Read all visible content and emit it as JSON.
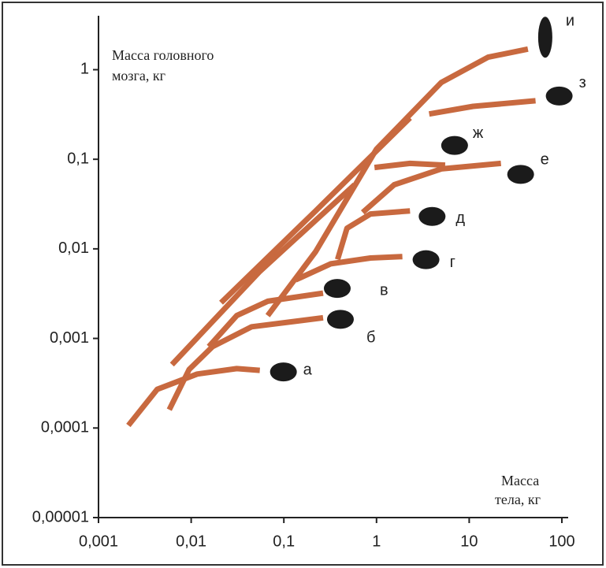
{
  "chart_data": {
    "type": "line",
    "xlabel": [
      "Масса",
      "тела, кг"
    ],
    "ylabel": [
      "Масса головного",
      "мозга, кг"
    ],
    "xscale": "log",
    "yscale": "log",
    "xlim": [
      0.001,
      100
    ],
    "ylim": [
      1e-05,
      4
    ],
    "xticks": [
      {
        "value": 0.001,
        "label": "0,001"
      },
      {
        "value": 0.01,
        "label": "0,01"
      },
      {
        "value": 0.1,
        "label": "0,1"
      },
      1,
      10,
      100
    ],
    "yticks": [
      {
        "value": 1e-05,
        "label": "0,00001"
      },
      {
        "value": 0.0001,
        "label": "0,0001"
      },
      {
        "value": 0.001,
        "label": "0,001"
      },
      {
        "value": 0.01,
        "label": "0,01"
      },
      {
        "value": 0.1,
        "label": "0,1"
      },
      1
    ],
    "color": "#c8693f",
    "series": [
      {
        "name": "а",
        "x": [
          0.0021,
          0.0043,
          0.0116,
          0.031,
          0.055
        ],
        "values": [
          0.000107,
          0.00027,
          0.0004,
          0.00046,
          0.00044
        ]
      },
      {
        "name": "б",
        "x": [
          0.0058,
          0.0095,
          0.017,
          0.045,
          0.265
        ],
        "values": [
          0.00016,
          0.00045,
          0.00081,
          0.00135,
          0.0017
        ]
      },
      {
        "name": "в",
        "x": [
          0.0155,
          0.031,
          0.067,
          0.265
        ],
        "values": [
          0.00081,
          0.0018,
          0.0026,
          0.0032
        ]
      },
      {
        "name": "г",
        "x": [
          0.134,
          0.32,
          0.86,
          1.9
        ],
        "values": [
          0.0045,
          0.0068,
          0.0079,
          0.0082
        ]
      },
      {
        "name": "д",
        "x": [
          0.38,
          0.48,
          0.86,
          2.3
        ],
        "values": [
          0.0076,
          0.017,
          0.0245,
          0.0265
        ]
      },
      {
        "name": "е",
        "x": [
          0.71,
          1.55,
          5.0,
          22
        ],
        "values": [
          0.0255,
          0.052,
          0.078,
          0.09
        ]
      },
      {
        "name": "ж",
        "x": [
          0.95,
          2.3,
          5.5
        ],
        "values": [
          0.081,
          0.09,
          0.086
        ]
      },
      {
        "name": "з",
        "x": [
          3.7,
          11,
          52
        ],
        "values": [
          0.32,
          0.39,
          0.45
        ]
      },
      {
        "name": "и",
        "x": [
          0.067,
          0.22,
          1,
          5.0,
          16,
          43
        ],
        "values": [
          0.0018,
          0.0093,
          0.13,
          0.72,
          1.38,
          1.7
        ]
      },
      {
        "x": [
          0.0062,
          0.055,
          0.58
        ],
        "values": [
          0.00051,
          0.0056,
          0.052
        ]
      },
      {
        "x": [
          0.021,
          0.22,
          2.3
        ],
        "values": [
          0.0025,
          0.0265,
          0.29
        ]
      }
    ]
  }
}
